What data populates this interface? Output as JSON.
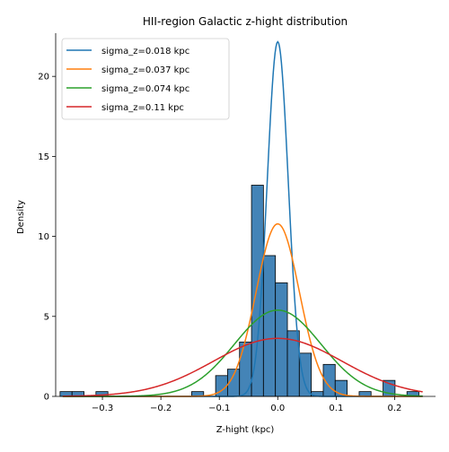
{
  "chart_data": {
    "type": "histogram+line",
    "title": "HII-region Galactic z-hight distribution",
    "xlabel": "Z-hight (kpc)",
    "ylabel": "Density",
    "xlim": [
      -0.38,
      0.27
    ],
    "ylim": [
      0,
      22.7
    ],
    "xticks": [
      -0.3,
      -0.2,
      -0.1,
      0.0,
      0.1,
      0.2
    ],
    "xtick_labels": [
      "−0.3",
      "−0.2",
      "−0.1",
      "0.0",
      "0.1",
      "0.2"
    ],
    "yticks": [
      0,
      5,
      10,
      15,
      20
    ],
    "ytick_labels": [
      "0",
      "5",
      "10",
      "15",
      "20"
    ],
    "grid": false,
    "legend_position": "top-left",
    "histogram": {
      "color": "#3a7db3",
      "edgecolor": "#000000",
      "bins": [
        {
          "x0": -0.3725,
          "x1": -0.352,
          "value": 0.3
        },
        {
          "x0": -0.352,
          "x1": -0.3315,
          "value": 0.3
        },
        {
          "x0": -0.3111,
          "x1": -0.2906,
          "value": 0.3
        },
        {
          "x0": -0.1473,
          "x1": -0.1268,
          "value": 0.3
        },
        {
          "x0": -0.1063,
          "x1": -0.0859,
          "value": 1.3
        },
        {
          "x0": -0.0859,
          "x1": -0.0654,
          "value": 1.7
        },
        {
          "x0": -0.0654,
          "x1": -0.0449,
          "value": 3.4
        },
        {
          "x0": -0.0449,
          "x1": -0.0245,
          "value": 13.2
        },
        {
          "x0": -0.0245,
          "x1": -0.004,
          "value": 8.8
        },
        {
          "x0": -0.004,
          "x1": 0.0165,
          "value": 7.1
        },
        {
          "x0": 0.0165,
          "x1": 0.0369,
          "value": 4.1
        },
        {
          "x0": 0.0369,
          "x1": 0.0574,
          "value": 2.7
        },
        {
          "x0": 0.0574,
          "x1": 0.0779,
          "value": 0.3
        },
        {
          "x0": 0.0779,
          "x1": 0.0983,
          "value": 2.0
        },
        {
          "x0": 0.0983,
          "x1": 0.1188,
          "value": 1.0
        },
        {
          "x0": 0.1393,
          "x1": 0.1597,
          "value": 0.3
        },
        {
          "x0": 0.1802,
          "x1": 0.2007,
          "value": 1.0
        },
        {
          "x0": 0.2211,
          "x1": 0.2416,
          "value": 0.3
        }
      ]
    },
    "series": [
      {
        "name": "sigma_z=0.018 kpc",
        "sigma": 0.018,
        "color": "#1f77b4"
      },
      {
        "name": "sigma_z=0.037 kpc",
        "sigma": 0.037,
        "color": "#ff7f0e"
      },
      {
        "name": "sigma_z=0.074 kpc",
        "sigma": 0.074,
        "color": "#2ca02c"
      },
      {
        "name": "sigma_z=0.11 kpc",
        "sigma": 0.11,
        "color": "#d62728"
      }
    ]
  }
}
